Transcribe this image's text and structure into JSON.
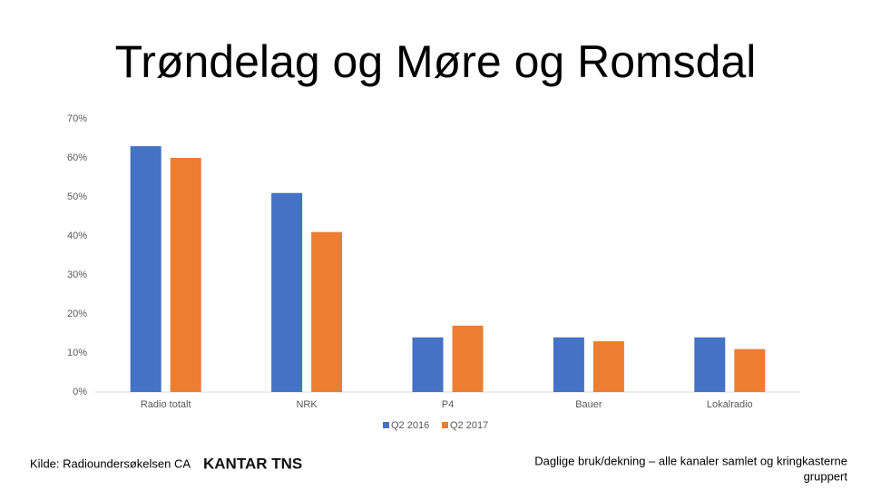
{
  "chart_data": {
    "type": "bar",
    "title": "Trøndelag og Møre og Romsdal",
    "categories": [
      "Radio totalt",
      "NRK",
      "P4",
      "Bauer",
      "Lokalradio"
    ],
    "series": [
      {
        "name": "Q2 2016",
        "color": "#4472c4",
        "values": [
          63,
          51,
          14,
          14,
          14
        ]
      },
      {
        "name": "Q2 2017",
        "color": "#ed7d31",
        "values": [
          60,
          41,
          17,
          13,
          11
        ]
      }
    ],
    "ylim": [
      0,
      70
    ],
    "yticks": [
      {
        "value": 0,
        "label": "0%"
      },
      {
        "value": 10,
        "label": "10%"
      },
      {
        "value": 20,
        "label": "20%"
      },
      {
        "value": 30,
        "label": "30%"
      },
      {
        "value": 40,
        "label": "40%"
      },
      {
        "value": 50,
        "label": "50%"
      },
      {
        "value": 60,
        "label": "60%"
      },
      {
        "value": 70,
        "label": "70%"
      }
    ],
    "grid": false,
    "legend": "bottom"
  },
  "footer": {
    "source": "Kilde: Radioundersøkelsen CA",
    "logo": "KANTAR TNS",
    "note_lines": [
      "Daglige bruk/dekning – alle kanaler samlet og kringkasterne",
      "gruppert"
    ]
  }
}
